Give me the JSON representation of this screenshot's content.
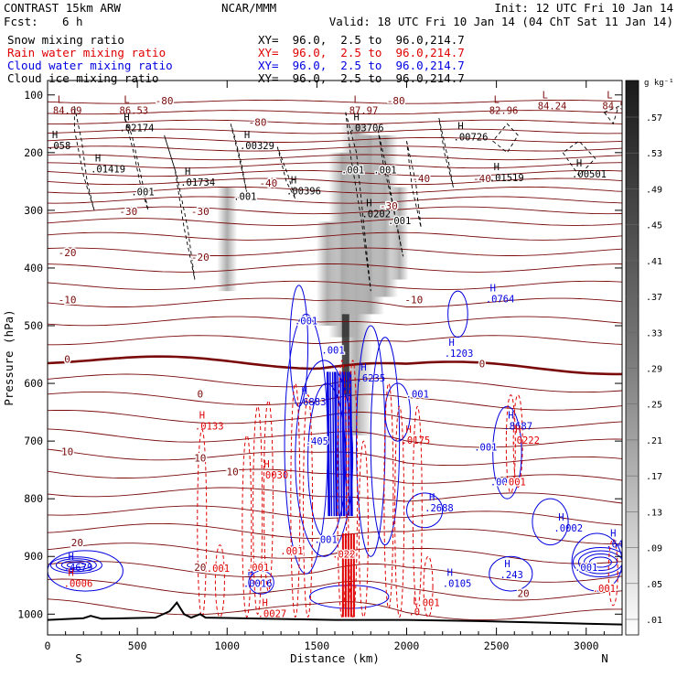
{
  "header": {
    "model": "CONTRAST 15km ARW",
    "org": "NCAR/MMM",
    "init": "Init: 12 UTC Fri 10 Jan 14",
    "fcst_label": "Fcst:",
    "fcst_value": "6 h",
    "valid": "Valid: 18 UTC Fri 10 Jan 14 (04 ChT Sat 11 Jan 14)"
  },
  "legend": [
    {
      "name": "Snow mixing ratio",
      "xy": "XY=  96.0,  2.5 to  96.0,214.7",
      "color": "#000000"
    },
    {
      "name": "Rain water mixing ratio",
      "xy": "XY=  96.0,  2.5 to  96.0,214.7",
      "color": "#e00000"
    },
    {
      "name": "Cloud water mixing ratio",
      "xy": "XY=  96.0,  2.5 to  96.0,214.7",
      "color": "#0000e0"
    },
    {
      "name": "Cloud ice mixing ratio",
      "xy": "XY=  96.0,  2.5 to  96.0,214.7",
      "color": "#000000"
    }
  ],
  "colors": {
    "temperature": "#7a0a0a",
    "rain": "#e00000",
    "cloud": "#0000e0",
    "snow": "#000000",
    "terrain": "#000000"
  },
  "chart_data": {
    "type": "cross-section",
    "xlabel": "Distance (km)",
    "ylabel": "Pressure (hPa)",
    "xlim": [
      0,
      3200
    ],
    "ylim": [
      1000,
      100
    ],
    "x_ticks": [
      "0",
      "500",
      "1000",
      "1500",
      "2000",
      "2500",
      "3000"
    ],
    "x_tick_values": [
      0,
      500,
      1000,
      1500,
      2000,
      2500,
      3000
    ],
    "y_ticks": [
      "100",
      "200",
      "300",
      "400",
      "500",
      "600",
      "700",
      "800",
      "900",
      "1000"
    ],
    "y_tick_values": [
      100,
      200,
      300,
      400,
      500,
      600,
      700,
      800,
      900,
      1000
    ],
    "endpoints": {
      "left": "S",
      "right": "N"
    },
    "colorbar": {
      "unit": "g kg⁻¹",
      "labels": [
        ".57",
        ".53",
        ".49",
        ".45",
        ".41",
        ".37",
        ".33",
        ".29",
        ".25",
        ".21",
        ".17",
        ".13",
        ".09",
        ".05",
        ".01"
      ],
      "values": [
        0.57,
        0.53,
        0.49,
        0.45,
        0.41,
        0.37,
        0.33,
        0.29,
        0.25,
        0.21,
        0.17,
        0.13,
        0.09,
        0.05,
        0.01
      ]
    },
    "temperature_contours": [
      {
        "label": "-80",
        "x": 650,
        "p": 110
      },
      {
        "label": "-80",
        "x": 1170,
        "p": 147
      },
      {
        "label": "-80",
        "x": 1940,
        "p": 110
      },
      {
        "label": "-40",
        "x": 1230,
        "p": 253
      },
      {
        "label": "-40",
        "x": 2080,
        "p": 245
      },
      {
        "label": "-40",
        "x": 2420,
        "p": 245
      },
      {
        "label": "-30",
        "x": 450,
        "p": 302
      },
      {
        "label": "-30",
        "x": 850,
        "p": 302
      },
      {
        "label": "-30",
        "x": 1900,
        "p": 292
      },
      {
        "label": "-20",
        "x": 110,
        "p": 373
      },
      {
        "label": "-20",
        "x": 850,
        "p": 381
      },
      {
        "label": "-10",
        "x": 110,
        "p": 455
      },
      {
        "label": "-10",
        "x": 2040,
        "p": 455
      },
      {
        "label": "0",
        "x": 110,
        "p": 558
      },
      {
        "label": "0",
        "x": 850,
        "p": 618
      },
      {
        "label": "0",
        "x": 2420,
        "p": 566
      },
      {
        "label": "10",
        "x": 110,
        "p": 718
      },
      {
        "label": "10",
        "x": 850,
        "p": 729
      },
      {
        "label": "10",
        "x": 1030,
        "p": 753
      },
      {
        "label": "20",
        "x": 165,
        "p": 876
      },
      {
        "label": "20",
        "x": 850,
        "p": 919
      },
      {
        "label": "20",
        "x": 2650,
        "p": 964
      }
    ],
    "maxima_labels": [
      {
        "kind": "L",
        "value": "84.69",
        "x": 30,
        "p": 128,
        "color": "#7a0a0a"
      },
      {
        "kind": "L",
        "value": "86.53",
        "x": 400,
        "p": 128,
        "color": "#7a0a0a"
      },
      {
        "kind": "L",
        "value": "87.97",
        "x": 1680,
        "p": 128,
        "color": "#7a0a0a"
      },
      {
        "kind": "L",
        "value": "82.96",
        "x": 2460,
        "p": 128,
        "color": "#7a0a0a"
      },
      {
        "kind": "L",
        "value": "84.24",
        "x": 2730,
        "p": 120,
        "color": "#7a0a0a"
      },
      {
        "kind": "L",
        "value": "84.51",
        "x": 3090,
        "p": 120,
        "color": "#7a0a0a"
      },
      {
        "kind": "H",
        "value": ".02174",
        "x": 400,
        "p": 158,
        "color": "#000000"
      },
      {
        "kind": "H",
        "value": ".00329",
        "x": 1070,
        "p": 189,
        "color": "#000000"
      },
      {
        "kind": "H",
        "value": ".03706",
        "x": 1680,
        "p": 158,
        "color": "#000000"
      },
      {
        "kind": "H",
        "value": ".00726",
        "x": 2260,
        "p": 174,
        "color": "#000000"
      },
      {
        "kind": "H",
        "value": ".058",
        "x": 0,
        "p": 189,
        "color": "#000000"
      },
      {
        "kind": "H",
        "value": ".01419",
        "x": 240,
        "p": 230,
        "color": "#000000"
      },
      {
        "kind": "H",
        "value": ".01734",
        "x": 740,
        "p": 253,
        "color": "#000000"
      },
      {
        "kind": "H",
        "value": ".00396",
        "x": 1330,
        "p": 268,
        "color": "#000000"
      },
      {
        "kind": "H",
        "value": ".01519",
        "x": 2460,
        "p": 245,
        "color": "#000000"
      },
      {
        "kind": "H",
        "value": ".00501",
        "x": 2920,
        "p": 238,
        "color": "#000000"
      },
      {
        "kind": "H",
        "value": ".0202",
        "x": 1750,
        "p": 307,
        "color": "#000000"
      },
      {
        "kind": "H",
        "value": ".0764",
        "x": 2440,
        "p": 455,
        "color": "#0000e0"
      },
      {
        "kind": "H",
        "value": ".1203",
        "x": 2210,
        "p": 549,
        "color": "#0000e0"
      },
      {
        "kind": "H",
        "value": ".6883",
        "x": 1390,
        "p": 633,
        "color": "#0000e0"
      },
      {
        "kind": "H",
        "value": ".6235",
        "x": 1720,
        "p": 592,
        "color": "#0000e0"
      },
      {
        "kind": "H",
        "value": ".2688",
        "x": 2100,
        "p": 817,
        "color": "#0000e0"
      },
      {
        "kind": "H",
        "value": ".8687",
        "x": 2540,
        "p": 675,
        "color": "#0000e0"
      },
      {
        "kind": "H",
        "value": ".0002",
        "x": 2820,
        "p": 852,
        "color": "#0000e0"
      },
      {
        "kind": "H",
        "value": ".4679",
        "x": 90,
        "p": 920,
        "color": "#0000e0"
      },
      {
        "kind": "H",
        "value": ".0016",
        "x": 1090,
        "p": 948,
        "color": "#0000e0"
      },
      {
        "kind": "H",
        "value": ".0105",
        "x": 2200,
        "p": 948,
        "color": "#0000e0"
      },
      {
        "kind": "H",
        "value": ".243",
        "x": 2520,
        "p": 933,
        "color": "#0000e0"
      },
      {
        "kind": "H",
        "value": ".645",
        "x": 3110,
        "p": 880,
        "color": "#0000e0"
      },
      {
        "kind": "H",
        "value": ".0133",
        "x": 820,
        "p": 675,
        "color": "#e00000"
      },
      {
        "kind": "H",
        "value": ".0030",
        "x": 1180,
        "p": 760,
        "color": "#e00000"
      },
      {
        "kind": "H",
        "value": ".0175",
        "x": 1970,
        "p": 700,
        "color": "#e00000"
      },
      {
        "kind": "H",
        "value": ".0222",
        "x": 2580,
        "p": 700,
        "color": "#e00000"
      },
      {
        "kind": "H",
        "value": ".0027",
        "x": 1170,
        "p": 1000,
        "color": "#e00000"
      },
      {
        "kind": "H",
        "value": ".0006",
        "x": 90,
        "p": 948,
        "color": "#e00000"
      },
      {
        "kind": "L",
        "value": ".0",
        "x": 2010,
        "p": 997,
        "color": "#e00000"
      }
    ],
    "contour_value_labels": [
      {
        "value": ".001",
        "x": 530,
        "p": 268,
        "color": "#000000"
      },
      {
        "value": ".001",
        "x": 1100,
        "p": 276,
        "color": "#000000"
      },
      {
        "value": ".001",
        "x": 1700,
        "p": 230,
        "color": "#000000"
      },
      {
        "value": ".001",
        "x": 1880,
        "p": 230,
        "color": "#000000"
      },
      {
        "value": ".001",
        "x": 1960,
        "p": 318,
        "color": "#000000"
      },
      {
        "value": ".001",
        "x": 1440,
        "p": 491,
        "color": "#0000e0"
      },
      {
        "value": ".001",
        "x": 1590,
        "p": 542,
        "color": "#0000e0"
      },
      {
        "value": ".001",
        "x": 2060,
        "p": 618,
        "color": "#0000e0"
      },
      {
        "value": ".001",
        "x": 2440,
        "p": 710,
        "color": "#0000e0"
      },
      {
        "value": ".001",
        "x": 2530,
        "p": 770,
        "color": "#0000e0"
      },
      {
        "value": ".001",
        "x": 3000,
        "p": 919,
        "color": "#0000e0"
      },
      {
        "value": ".405",
        "x": 1500,
        "p": 700,
        "color": "#0000e0"
      },
      {
        "value": ".001",
        "x": 1550,
        "p": 870,
        "color": "#0000e0"
      },
      {
        "value": ".001",
        "x": 1360,
        "p": 890,
        "color": "#e00000"
      },
      {
        "value": ".001",
        "x": 2120,
        "p": 980,
        "color": "#e00000"
      },
      {
        "value": ".001",
        "x": 2600,
        "p": 770,
        "color": "#e00000"
      },
      {
        "value": ".001",
        "x": 3100,
        "p": 955,
        "color": "#e00000"
      },
      {
        "value": ".001",
        "x": 1170,
        "p": 919,
        "color": "#e00000"
      },
      {
        "value": ".001",
        "x": 950,
        "p": 920,
        "color": "#e00000"
      },
      {
        "value": ".022",
        "x": 1650,
        "p": 896,
        "color": "#e00000"
      }
    ]
  }
}
